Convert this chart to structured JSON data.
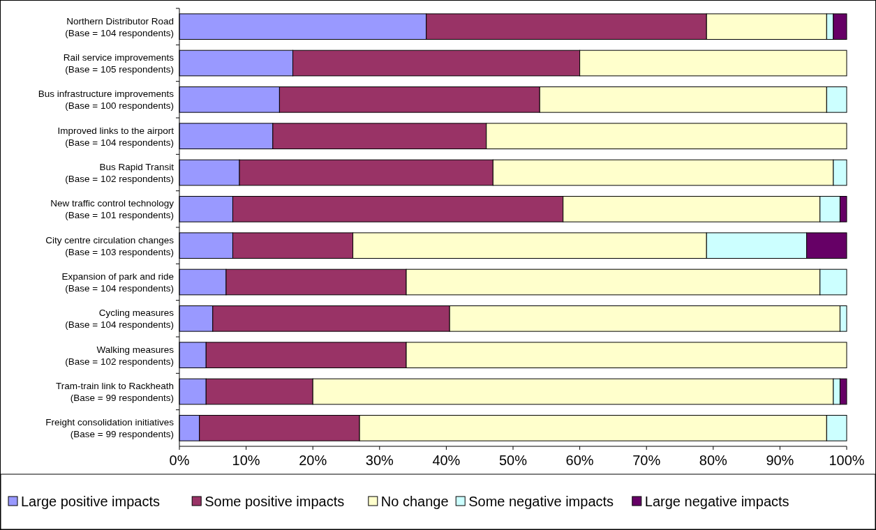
{
  "chart_data": {
    "type": "bar",
    "orientation": "horizontal",
    "stacked": true,
    "categories": [
      "Northern Distributor Road\n(Base = 104 respondents)",
      "Rail service improvements\n(Base = 105 respondents)",
      "Bus infrastructure improvements\n(Base = 100 respondents)",
      "Improved links to the airport\n(Base = 104 respondents)",
      "Bus Rapid Transit\n(Base = 102 respondents)",
      "New traffic control technology\n(Base = 101 respondents)",
      "City centre circulation changes\n(Base = 103 respondents)",
      "Expansion of park and ride\n(Base = 104 respondents)",
      "Cycling measures\n(Base = 104 respondents)",
      "Walking measures\n(Base = 102 respondents)",
      "Tram-train link to Rackheath\n(Base = 99 respondents)",
      "Freight consolidation initiatives\n(Base = 99 respondents)"
    ],
    "series": [
      {
        "name": "Large positive impacts",
        "color": "#9999ff",
        "values": [
          37,
          17,
          15,
          14,
          9,
          8,
          8,
          7,
          5,
          4,
          4,
          3
        ]
      },
      {
        "name": "Some positive impacts",
        "color": "#993366",
        "values": [
          42,
          43,
          39,
          32,
          38,
          49.5,
          18,
          27,
          35.5,
          30,
          16,
          24
        ]
      },
      {
        "name": "No change",
        "color": "#ffffcc",
        "values": [
          18,
          40,
          43,
          54,
          51,
          38.5,
          53,
          62,
          58.5,
          66,
          78,
          70
        ]
      },
      {
        "name": "Some negative impacts",
        "color": "#ccffff",
        "values": [
          1,
          0,
          3,
          0,
          2,
          3,
          15,
          4,
          1,
          0,
          1,
          3
        ]
      },
      {
        "name": "Large negative impacts",
        "color": "#660066",
        "values": [
          2,
          0,
          0,
          0,
          0,
          1,
          6,
          0,
          0,
          0,
          1,
          0
        ]
      }
    ],
    "xlim": [
      0,
      100
    ],
    "xticks": [
      {
        "value": 0,
        "label": "0%"
      },
      {
        "value": 10,
        "label": "10%"
      },
      {
        "value": 20,
        "label": "20%"
      },
      {
        "value": 30,
        "label": "30%"
      },
      {
        "value": 40,
        "label": "40%"
      },
      {
        "value": 50,
        "label": "50%"
      },
      {
        "value": 60,
        "label": "60%"
      },
      {
        "value": 70,
        "label": "70%"
      },
      {
        "value": 80,
        "label": "80%"
      },
      {
        "value": 90,
        "label": "90%"
      },
      {
        "value": 100,
        "label": "100%"
      }
    ],
    "grid": false,
    "legend": "bottom"
  }
}
